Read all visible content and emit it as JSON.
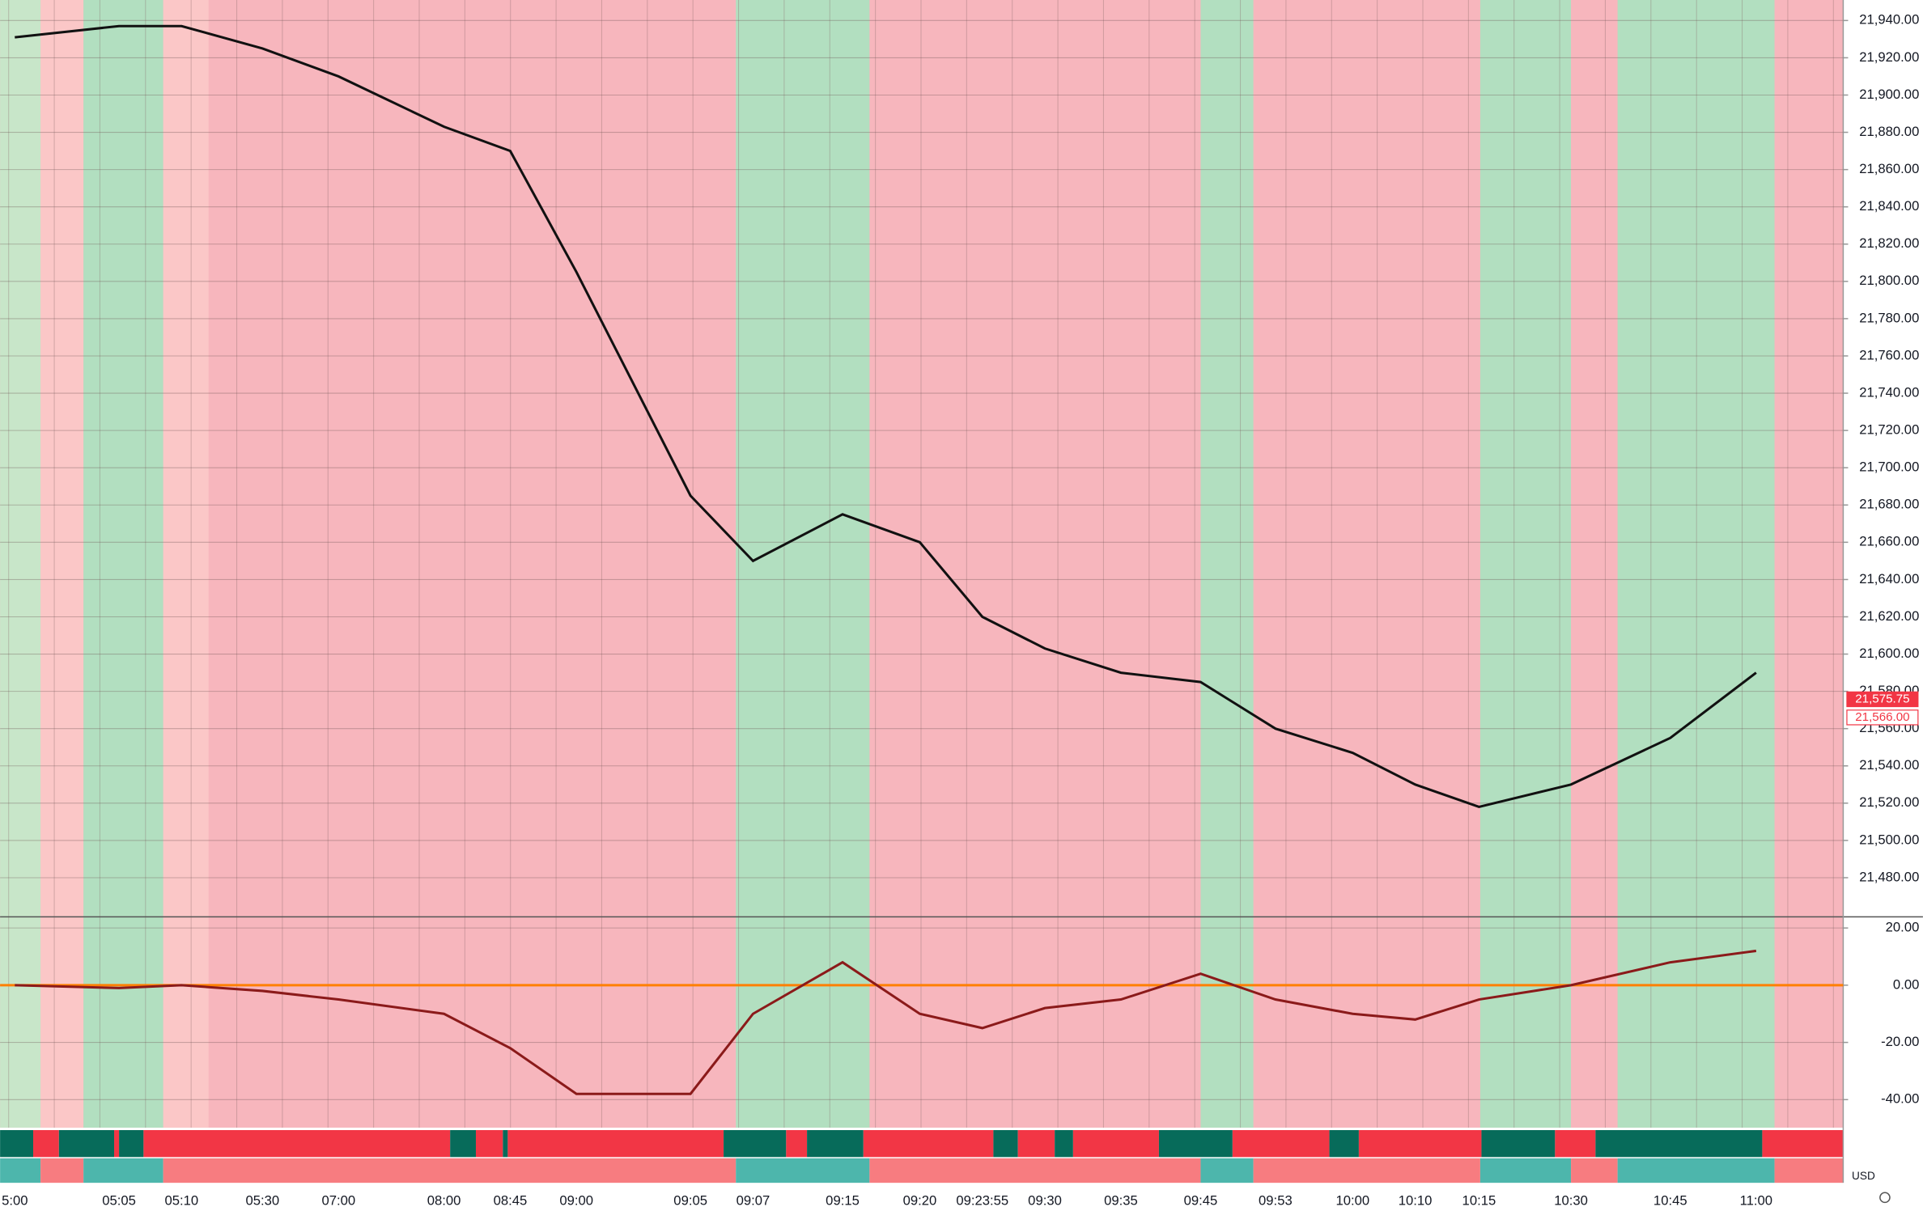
{
  "chart_data": [
    {
      "type": "line",
      "categories": [
        "5:00",
        "05:05",
        "05:10",
        "05:30",
        "07:00",
        "08:00",
        "08:45",
        "09:00",
        "09:05",
        "09:07",
        "09:15",
        "09:20",
        "09:23:55",
        "09:30",
        "09:35",
        "09:45",
        "09:53",
        "10:00",
        "10:10",
        "10:15",
        "10:30",
        "10:45",
        "11:00"
      ],
      "series": [
        {
          "color": "#111111",
          "values": [
            21931,
            21937,
            21937,
            21925,
            21910,
            21883,
            21870,
            21805,
            21685,
            21650,
            21675,
            21660,
            21620,
            21603,
            21590,
            21585,
            21560,
            21547,
            21530,
            21518,
            21530,
            21555,
            21590
          ]
        }
      ],
      "ylim": [
        21459,
        21951
      ],
      "yticks": [
        {
          "value": 21480,
          "label": "21,480.00"
        },
        {
          "value": 21500,
          "label": "21,500.00"
        },
        {
          "value": 21520,
          "label": "21,520.00"
        },
        {
          "value": 21540,
          "label": "21,540.00"
        },
        {
          "value": 21560,
          "label": "21,560.00"
        },
        {
          "value": 21580,
          "label": "21,580.00"
        },
        {
          "value": 21600,
          "label": "21,600.00"
        },
        {
          "value": 21620,
          "label": "21,620.00"
        },
        {
          "value": 21640,
          "label": "21,640.00"
        },
        {
          "value": 21660,
          "label": "21,660.00"
        },
        {
          "value": 21680,
          "label": "21,680.00"
        },
        {
          "value": 21700,
          "label": "21,700.00"
        },
        {
          "value": 21720,
          "label": "21,720.00"
        },
        {
          "value": 21740,
          "label": "21,740.00"
        },
        {
          "value": 21760,
          "label": "21,760.00"
        },
        {
          "value": 21780,
          "label": "21,780.00"
        },
        {
          "value": 21800,
          "label": "21,800.00"
        },
        {
          "value": 21820,
          "label": "21,820.00"
        },
        {
          "value": 21840,
          "label": "21,840.00"
        },
        {
          "value": 21860,
          "label": "21,860.00"
        },
        {
          "value": 21880,
          "label": "21,880.00"
        },
        {
          "value": 21900,
          "label": "21,900.00"
        },
        {
          "value": 21920,
          "label": "21,920.00"
        },
        {
          "value": 21940,
          "label": "21,940.00"
        }
      ],
      "price_labels": [
        {
          "value": 21575.75,
          "label": "21,575.75",
          "color": "#f23645",
          "text_color": "#ffffff"
        },
        {
          "value": 21566,
          "label": "21,566.00",
          "color": "#ffffff",
          "text_color": "#f23645"
        }
      ],
      "currency_label": "USD",
      "grid": true
    },
    {
      "type": "line",
      "series": [
        {
          "color": "#8b1a1a",
          "values": [
            0,
            -1,
            0,
            -2,
            -5,
            -10,
            -22,
            -38,
            -38,
            -10,
            8,
            -10,
            -15,
            -8,
            -5,
            4,
            -5,
            -10,
            -12,
            -5,
            0,
            8,
            12
          ]
        }
      ],
      "ylim": [
        -49.8,
        23.9
      ],
      "yticks": [
        {
          "value": -40,
          "label": "-40.00"
        },
        {
          "value": -20,
          "label": "-20.00"
        },
        {
          "value": 0,
          "label": "0.00"
        },
        {
          "value": 20,
          "label": "20.00"
        }
      ],
      "hline": {
        "value": 0,
        "color": "#ff7f00"
      },
      "grid": true
    }
  ]
}
